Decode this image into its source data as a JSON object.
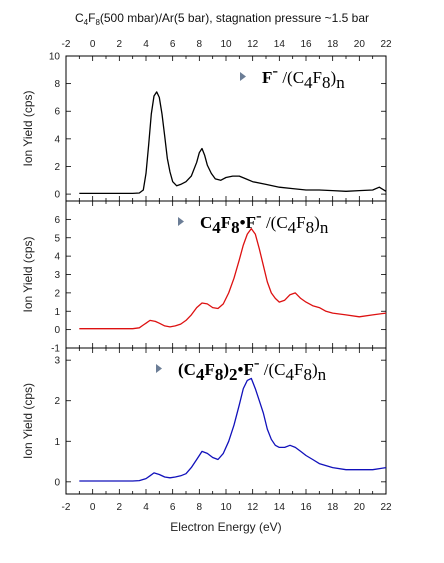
{
  "chart_data": {
    "type": "line",
    "title": {
      "parts": [
        {
          "text": "C",
          "sub": false
        },
        {
          "text": "4",
          "sub": true
        },
        {
          "text": "F",
          "sub": false
        },
        {
          "text": "8",
          "sub": true
        },
        {
          "text": "(500 mbar)/Ar(5 bar), stagnation pressure ~1.5 bar",
          "sub": false
        }
      ]
    },
    "xlabel": "Electron Energy (eV)",
    "xlim": [
      -2,
      22
    ],
    "xticks": [
      -2,
      0,
      2,
      4,
      6,
      8,
      10,
      12,
      14,
      16,
      18,
      20,
      22
    ],
    "panels": [
      {
        "ylabel": "Ion Yield (cps)",
        "ylim": [
          -0.5,
          10
        ],
        "yticks": [
          0,
          2,
          4,
          6,
          8,
          10
        ],
        "color": "#000000",
        "marker_color": "#6b7d96",
        "label_parts": [
          {
            "text": "F",
            "bold": true
          },
          {
            "text": "-",
            "bold": false,
            "sup": true
          },
          {
            "text": " /(C",
            "bold": false
          },
          {
            "text": "4",
            "bold": false,
            "sub": true
          },
          {
            "text": "F",
            "bold": false
          },
          {
            "text": "8",
            "bold": false,
            "sub": true
          },
          {
            "text": ")",
            "bold": false
          },
          {
            "text": "n",
            "bold": false,
            "sub": true
          }
        ],
        "series": {
          "x": [
            -1,
            0,
            1,
            2,
            3,
            3.5,
            3.8,
            4.0,
            4.2,
            4.4,
            4.6,
            4.8,
            5.0,
            5.2,
            5.4,
            5.6,
            5.8,
            6.0,
            6.3,
            6.6,
            7.0,
            7.4,
            7.8,
            8.0,
            8.2,
            8.4,
            8.6,
            8.9,
            9.2,
            9.6,
            10.0,
            10.5,
            11.0,
            11.5,
            12.0,
            13.0,
            14.0,
            15.0,
            16.0,
            17.0,
            18.0,
            19.0,
            20.0,
            21.0,
            21.5,
            22.0
          ],
          "y": [
            0.05,
            0.05,
            0.05,
            0.05,
            0.05,
            0.08,
            0.3,
            1.5,
            3.6,
            5.8,
            7.1,
            7.4,
            7.0,
            5.8,
            4.2,
            2.6,
            1.6,
            0.9,
            0.6,
            0.7,
            0.9,
            1.3,
            2.3,
            3.0,
            3.3,
            2.8,
            2.1,
            1.5,
            1.1,
            1.0,
            1.2,
            1.3,
            1.3,
            1.1,
            0.9,
            0.7,
            0.5,
            0.4,
            0.3,
            0.3,
            0.25,
            0.2,
            0.25,
            0.3,
            0.5,
            0.2
          ]
        }
      },
      {
        "ylabel": "Ion Yield (cps)",
        "ylim": [
          -1,
          7
        ],
        "yticks": [
          -1,
          0,
          1,
          2,
          3,
          4,
          5,
          6
        ],
        "color": "#dd1111",
        "marker_color": "#6b7d96",
        "label_parts": [
          {
            "text": "C",
            "bold": true
          },
          {
            "text": "4",
            "bold": true,
            "sub": true
          },
          {
            "text": "F",
            "bold": true
          },
          {
            "text": "8",
            "bold": true,
            "sub": true
          },
          {
            "text": "•F",
            "bold": true
          },
          {
            "text": "-",
            "bold": false,
            "sup": true
          },
          {
            "text": " /(C",
            "bold": false
          },
          {
            "text": "4",
            "bold": false,
            "sub": true
          },
          {
            "text": "F",
            "bold": false
          },
          {
            "text": "8",
            "bold": false,
            "sub": true
          },
          {
            "text": ")",
            "bold": false
          },
          {
            "text": "n",
            "bold": false,
            "sub": true
          }
        ],
        "series": {
          "x": [
            -1,
            0,
            1,
            2,
            3,
            3.5,
            3.8,
            4.0,
            4.3,
            4.7,
            5.0,
            5.4,
            5.8,
            6.2,
            6.6,
            7.0,
            7.4,
            7.8,
            8.2,
            8.6,
            9.0,
            9.4,
            9.8,
            10.2,
            10.6,
            11.0,
            11.3,
            11.6,
            11.9,
            12.2,
            12.5,
            12.8,
            13.1,
            13.4,
            13.7,
            14.0,
            14.4,
            14.8,
            15.2,
            15.6,
            16.0,
            16.5,
            17.0,
            17.5,
            18.0,
            19.0,
            20.0,
            21.0,
            22.0
          ],
          "y": [
            0.05,
            0.05,
            0.05,
            0.05,
            0.05,
            0.1,
            0.25,
            0.35,
            0.5,
            0.45,
            0.35,
            0.2,
            0.15,
            0.2,
            0.3,
            0.5,
            0.8,
            1.2,
            1.45,
            1.4,
            1.2,
            1.15,
            1.4,
            2.0,
            2.8,
            3.8,
            4.6,
            5.2,
            5.5,
            5.2,
            4.4,
            3.5,
            2.6,
            2.0,
            1.7,
            1.5,
            1.6,
            1.9,
            2.0,
            1.7,
            1.5,
            1.3,
            1.2,
            1.0,
            0.9,
            0.8,
            0.7,
            0.8,
            0.9
          ]
        }
      },
      {
        "ylabel": "Ion Yield (cps)",
        "ylim": [
          -0.3,
          3.3
        ],
        "yticks": [
          0,
          1,
          2,
          3
        ],
        "color": "#1111bb",
        "marker_color": "#6b7d96",
        "label_parts": [
          {
            "text": "(C",
            "bold": true
          },
          {
            "text": "4",
            "bold": true,
            "sub": true
          },
          {
            "text": "F",
            "bold": true
          },
          {
            "text": "8",
            "bold": true,
            "sub": true
          },
          {
            "text": ")",
            "bold": true
          },
          {
            "text": "2",
            "bold": true,
            "sub": true
          },
          {
            "text": "•F",
            "bold": true
          },
          {
            "text": "-",
            "bold": false,
            "sup": true
          },
          {
            "text": " /(C",
            "bold": false
          },
          {
            "text": "4",
            "bold": false,
            "sub": true
          },
          {
            "text": "F",
            "bold": false
          },
          {
            "text": "8",
            "bold": false,
            "sub": true
          },
          {
            "text": ")",
            "bold": false
          },
          {
            "text": "n",
            "bold": false,
            "sub": true
          }
        ],
        "series": {
          "x": [
            -1,
            0,
            1,
            2,
            3,
            3.5,
            4.0,
            4.3,
            4.6,
            5.0,
            5.4,
            5.8,
            6.2,
            6.6,
            7.0,
            7.4,
            7.8,
            8.2,
            8.6,
            9.0,
            9.4,
            9.8,
            10.2,
            10.6,
            11.0,
            11.3,
            11.6,
            11.9,
            12.2,
            12.5,
            12.8,
            13.1,
            13.4,
            13.7,
            14.0,
            14.4,
            14.8,
            15.2,
            15.6,
            16.0,
            16.5,
            17.0,
            17.5,
            18.0,
            19.0,
            20.0,
            21.0,
            22.0
          ],
          "y": [
            0.02,
            0.02,
            0.02,
            0.02,
            0.02,
            0.03,
            0.08,
            0.15,
            0.22,
            0.18,
            0.12,
            0.1,
            0.12,
            0.15,
            0.2,
            0.35,
            0.55,
            0.75,
            0.7,
            0.6,
            0.55,
            0.7,
            1.0,
            1.4,
            1.9,
            2.3,
            2.5,
            2.55,
            2.3,
            2.0,
            1.7,
            1.3,
            1.05,
            0.9,
            0.85,
            0.85,
            0.9,
            0.85,
            0.75,
            0.65,
            0.55,
            0.45,
            0.4,
            0.35,
            0.3,
            0.3,
            0.3,
            0.35
          ]
        }
      }
    ]
  }
}
